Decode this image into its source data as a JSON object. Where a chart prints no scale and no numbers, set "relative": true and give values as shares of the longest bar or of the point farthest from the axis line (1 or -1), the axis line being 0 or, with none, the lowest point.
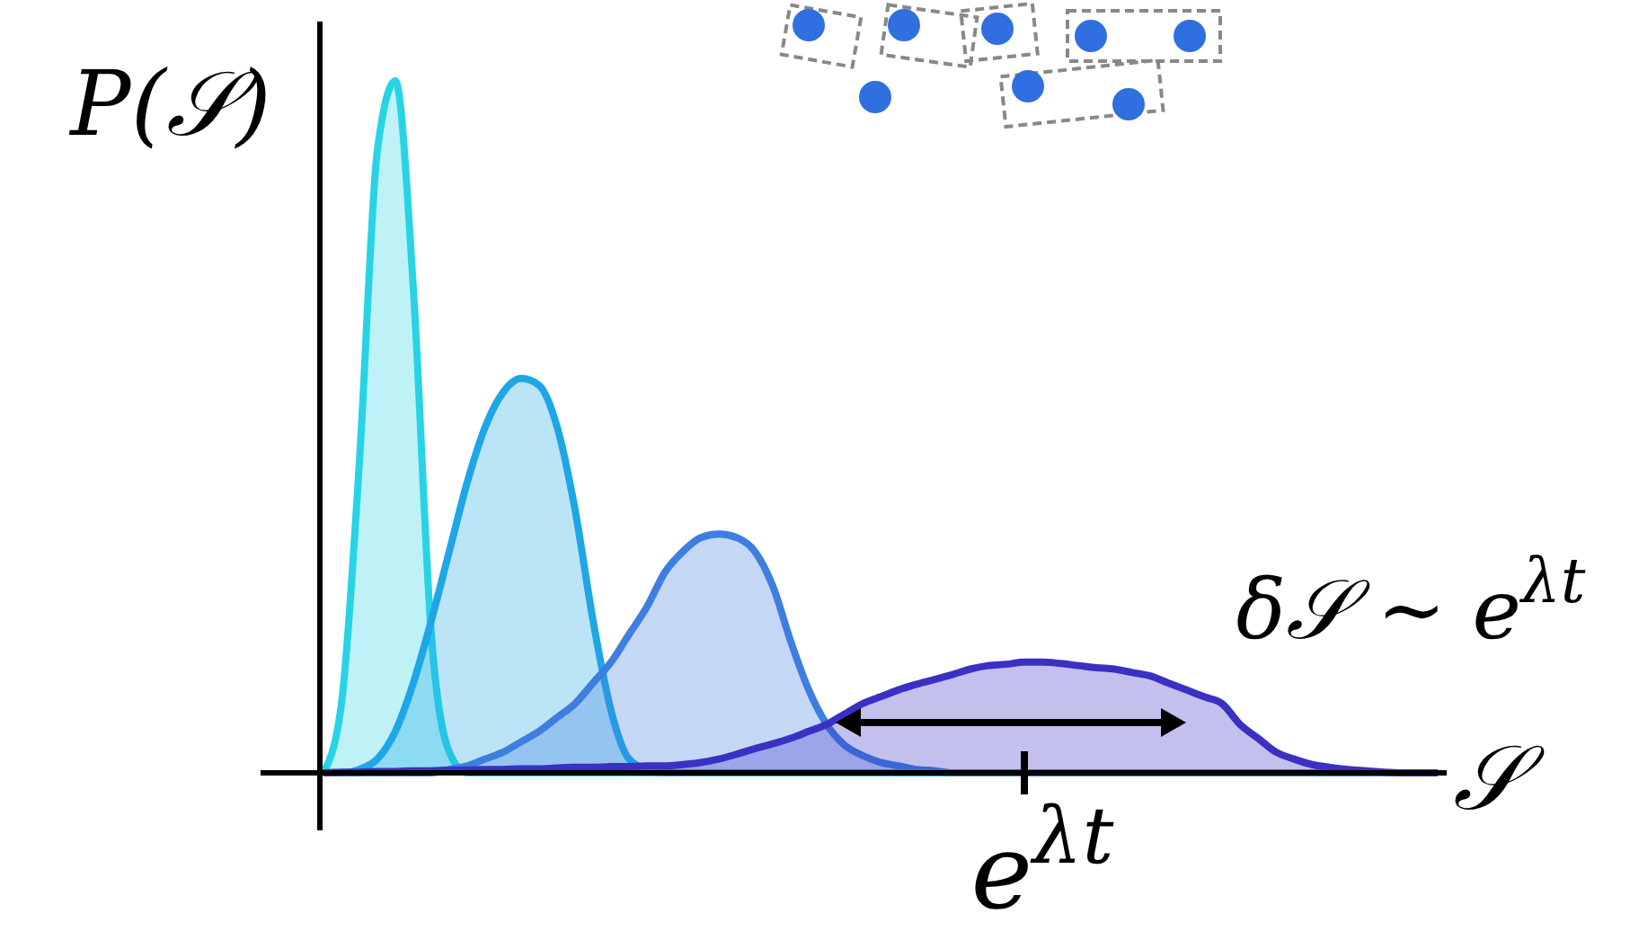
{
  "chart_data": {
    "type": "area",
    "relative": true,
    "legend": false,
    "ylabel": "P(𝒮)",
    "xlabel": "𝒮",
    "grid": false,
    "categories": [
      null,
      null,
      null,
      null,
      null,
      null,
      null,
      null,
      null,
      null,
      null,
      null,
      null,
      null,
      null,
      null,
      null,
      null,
      null,
      null,
      null,
      null,
      null,
      null,
      null,
      null,
      null,
      null,
      null,
      null,
      null,
      null,
      null,
      null,
      null,
      null,
      null,
      null,
      null,
      null,
      null,
      null,
      null,
      null,
      null,
      null,
      null,
      null,
      null,
      null,
      null,
      null,
      null,
      null,
      null,
      null,
      null,
      null,
      null,
      null,
      null,
      null,
      null
    ],
    "series": [
      {
        "color": "#29d3e6",
        "values": [
          0,
          0.1,
          0.45,
          0.9,
          1,
          0.7,
          0.2,
          0.03,
          0,
          0,
          0,
          0,
          0,
          0,
          0,
          0,
          0,
          0,
          0,
          0,
          0,
          0,
          0,
          0,
          0,
          0,
          0,
          0,
          0,
          0,
          0,
          0,
          0,
          0,
          0,
          0,
          0,
          0,
          0,
          0,
          0,
          0,
          0,
          0,
          0,
          0,
          0,
          0,
          0,
          0,
          0,
          0,
          0,
          0,
          0,
          0,
          0,
          0,
          0,
          0,
          0,
          0,
          0
        ]
      },
      {
        "color": "#1ea6e6",
        "values": [
          0,
          0,
          0.005,
          0.02,
          0.06,
          0.13,
          0.22,
          0.32,
          0.42,
          0.5,
          0.55,
          0.57,
          0.56,
          0.5,
          0.38,
          0.22,
          0.09,
          0.02,
          0.005,
          0,
          0,
          0,
          0,
          0,
          0,
          0,
          0,
          0,
          0,
          0,
          0,
          0,
          0,
          0,
          0,
          0,
          0,
          0,
          0,
          0,
          0,
          0,
          0,
          0,
          0,
          0,
          0,
          0,
          0,
          0,
          0,
          0,
          0,
          0,
          0,
          0,
          0,
          0,
          0,
          0,
          0,
          0,
          0
        ]
      },
      {
        "color": "#3d7ee0",
        "values": [
          0,
          0,
          0,
          0,
          0,
          0,
          0,
          0.005,
          0.01,
          0.02,
          0.03,
          0.045,
          0.06,
          0.08,
          0.1,
          0.13,
          0.16,
          0.2,
          0.24,
          0.29,
          0.32,
          0.34,
          0.345,
          0.34,
          0.32,
          0.27,
          0.19,
          0.12,
          0.07,
          0.04,
          0.025,
          0.015,
          0.01,
          0.005,
          0.003,
          0,
          0,
          0,
          0,
          0,
          0,
          0,
          0,
          0,
          0,
          0,
          0,
          0,
          0,
          0,
          0,
          0,
          0,
          0,
          0,
          0,
          0,
          0,
          0,
          0,
          0,
          0,
          0
        ]
      },
      {
        "color": "#3b30c4",
        "values": [
          0,
          0.001,
          0.001,
          0.002,
          0.002,
          0.003,
          0.003,
          0.004,
          0.004,
          0.005,
          0.005,
          0.006,
          0.006,
          0.007,
          0.008,
          0.008,
          0.009,
          0.009,
          0.01,
          0.01,
          0.012,
          0.015,
          0.02,
          0.027,
          0.035,
          0.042,
          0.05,
          0.06,
          0.07,
          0.085,
          0.1,
          0.11,
          0.12,
          0.128,
          0.135,
          0.142,
          0.15,
          0.155,
          0.157,
          0.16,
          0.16,
          0.158,
          0.155,
          0.152,
          0.15,
          0.145,
          0.14,
          0.13,
          0.12,
          0.11,
          0.1,
          0.07,
          0.05,
          0.03,
          0.02,
          0.012,
          0.008,
          0.005,
          0.003,
          0.001,
          0,
          0,
          0
        ]
      }
    ],
    "annotations": [
      "e$^{λt}$",
      "δ𝒮 ∼ e$^{λt}$"
    ]
  }
}
